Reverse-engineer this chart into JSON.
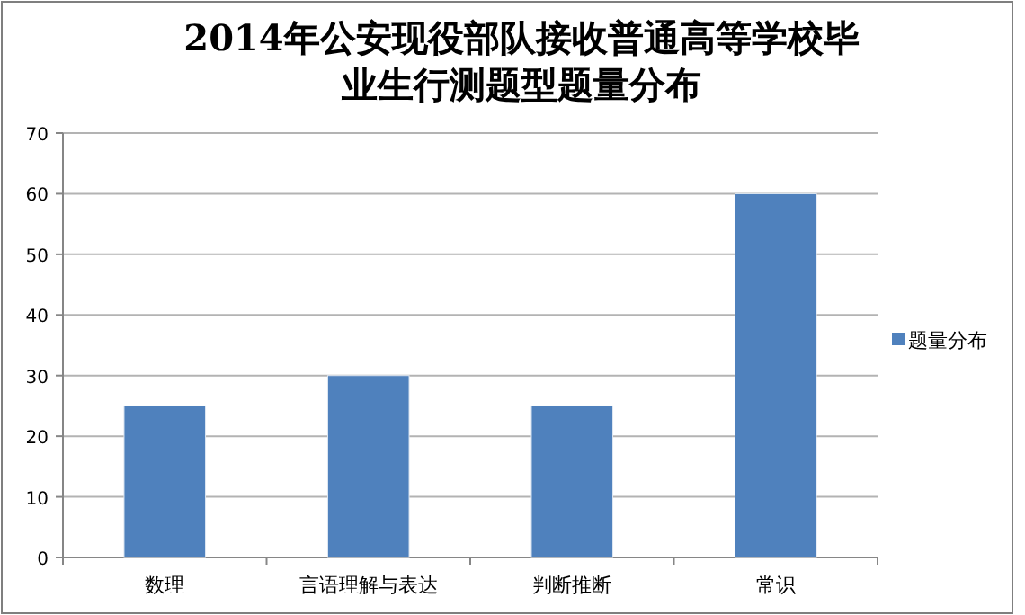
{
  "chart_data": {
    "type": "bar",
    "title": "2014年公安现役部队接收普通高等学校毕业生行测题型题量分布",
    "categories": [
      "数理",
      "言语理解与表达",
      "判断推断",
      "常识"
    ],
    "series": [
      {
        "name": "题量分布",
        "color": "#4f81bd",
        "values": [
          25,
          30,
          25,
          60
        ]
      }
    ],
    "ylim": [
      0,
      70
    ],
    "yticks": [
      0,
      10,
      20,
      30,
      40,
      50,
      60,
      70
    ],
    "grid": "y",
    "legend": "right"
  }
}
